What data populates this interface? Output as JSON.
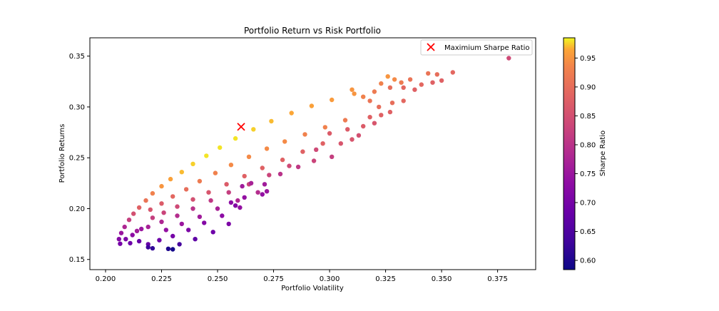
{
  "chart_data": {
    "type": "scatter",
    "title": "Portfolio Return vs Risk Portfolio",
    "xlabel": "Portfolio Volatility",
    "ylabel": "Portfolio Returns",
    "xlim": [
      0.193,
      0.392
    ],
    "ylim": [
      0.14,
      0.368
    ],
    "xticks": [
      {
        "value": 0.2,
        "label": "0.200"
      },
      {
        "value": 0.225,
        "label": "0.225"
      },
      {
        "value": 0.25,
        "label": "0.250"
      },
      {
        "value": 0.275,
        "label": "0.275"
      },
      {
        "value": 0.3,
        "label": "0.300"
      },
      {
        "value": 0.325,
        "label": "0.325"
      },
      {
        "value": 0.35,
        "label": "0.350"
      },
      {
        "value": 0.375,
        "label": "0.375"
      }
    ],
    "yticks": [
      {
        "value": 0.15,
        "label": "0.15"
      },
      {
        "value": 0.2,
        "label": "0.20"
      },
      {
        "value": 0.25,
        "label": "0.25"
      },
      {
        "value": 0.3,
        "label": "0.30"
      },
      {
        "value": 0.35,
        "label": "0.35"
      }
    ],
    "grid": false,
    "legend": {
      "position": "top-right",
      "entries": [
        {
          "label": "Maximium Sharpe Ratio",
          "marker": "x",
          "color": "#ff0000"
        }
      ]
    },
    "colorbar": {
      "label": "Sharpe Ratio",
      "colormap": "plasma",
      "range": [
        0.584,
        0.985
      ],
      "ticks": [
        {
          "value": 0.6,
          "label": "0.60"
        },
        {
          "value": 0.65,
          "label": "0.65"
        },
        {
          "value": 0.7,
          "label": "0.70"
        },
        {
          "value": 0.75,
          "label": "0.75"
        },
        {
          "value": 0.8,
          "label": "0.80"
        },
        {
          "value": 0.85,
          "label": "0.85"
        },
        {
          "value": 0.9,
          "label": "0.90"
        },
        {
          "value": 0.95,
          "label": "0.95"
        }
      ]
    },
    "max_sharpe_point": {
      "x": 0.2605,
      "y": 0.2805
    },
    "series": [
      {
        "values_format": "[volatility, return, sharpe_ratio]",
        "points": [
          [
            0.2065,
            0.1655,
            0.7
          ],
          [
            0.206,
            0.17,
            0.72
          ],
          [
            0.207,
            0.176,
            0.75
          ],
          [
            0.2085,
            0.182,
            0.78
          ],
          [
            0.2105,
            0.189,
            0.82
          ],
          [
            0.2125,
            0.195,
            0.85
          ],
          [
            0.215,
            0.201,
            0.88
          ],
          [
            0.218,
            0.208,
            0.91
          ],
          [
            0.221,
            0.215,
            0.93
          ],
          [
            0.225,
            0.222,
            0.95
          ],
          [
            0.229,
            0.229,
            0.96
          ],
          [
            0.234,
            0.236,
            0.97
          ],
          [
            0.239,
            0.244,
            0.975
          ],
          [
            0.245,
            0.252,
            0.98
          ],
          [
            0.251,
            0.26,
            0.98
          ],
          [
            0.258,
            0.269,
            0.98
          ],
          [
            0.266,
            0.278,
            0.975
          ],
          [
            0.274,
            0.286,
            0.97
          ],
          [
            0.283,
            0.294,
            0.965
          ],
          [
            0.292,
            0.301,
            0.96
          ],
          [
            0.301,
            0.307,
            0.955
          ],
          [
            0.311,
            0.313,
            0.95
          ],
          [
            0.22,
            0.199,
            0.86
          ],
          [
            0.225,
            0.205,
            0.87
          ],
          [
            0.23,
            0.212,
            0.89
          ],
          [
            0.236,
            0.219,
            0.9
          ],
          [
            0.242,
            0.227,
            0.92
          ],
          [
            0.249,
            0.235,
            0.93
          ],
          [
            0.256,
            0.243,
            0.94
          ],
          [
            0.264,
            0.251,
            0.94
          ],
          [
            0.272,
            0.259,
            0.94
          ],
          [
            0.28,
            0.266,
            0.94
          ],
          [
            0.289,
            0.273,
            0.93
          ],
          [
            0.298,
            0.28,
            0.93
          ],
          [
            0.307,
            0.287,
            0.92
          ],
          [
            0.221,
            0.191,
            0.82
          ],
          [
            0.226,
            0.196,
            0.83
          ],
          [
            0.232,
            0.202,
            0.84
          ],
          [
            0.239,
            0.209,
            0.85
          ],
          [
            0.246,
            0.216,
            0.86
          ],
          [
            0.254,
            0.224,
            0.87
          ],
          [
            0.262,
            0.232,
            0.88
          ],
          [
            0.27,
            0.24,
            0.88
          ],
          [
            0.279,
            0.248,
            0.88
          ],
          [
            0.288,
            0.256,
            0.88
          ],
          [
            0.297,
            0.264,
            0.88
          ],
          [
            0.214,
            0.178,
            0.76
          ],
          [
            0.219,
            0.182,
            0.77
          ],
          [
            0.225,
            0.187,
            0.78
          ],
          [
            0.232,
            0.193,
            0.79
          ],
          [
            0.239,
            0.2,
            0.8
          ],
          [
            0.247,
            0.208,
            0.81
          ],
          [
            0.255,
            0.216,
            0.82
          ],
          [
            0.264,
            0.224,
            0.83
          ],
          [
            0.273,
            0.233,
            0.83
          ],
          [
            0.282,
            0.242,
            0.84
          ],
          [
            0.227,
            0.179,
            0.74
          ],
          [
            0.234,
            0.185,
            0.75
          ],
          [
            0.242,
            0.192,
            0.76
          ],
          [
            0.25,
            0.2,
            0.77
          ],
          [
            0.259,
            0.208,
            0.78
          ],
          [
            0.268,
            0.216,
            0.79
          ],
          [
            0.219,
            0.165,
            0.68
          ],
          [
            0.224,
            0.169,
            0.69
          ],
          [
            0.23,
            0.173,
            0.7
          ],
          [
            0.237,
            0.179,
            0.71
          ],
          [
            0.244,
            0.186,
            0.72
          ],
          [
            0.252,
            0.193,
            0.73
          ],
          [
            0.26,
            0.201,
            0.74
          ],
          [
            0.209,
            0.17,
            0.71
          ],
          [
            0.212,
            0.174,
            0.73
          ],
          [
            0.216,
            0.18,
            0.75
          ],
          [
            0.211,
            0.166,
            0.69
          ],
          [
            0.215,
            0.168,
            0.68
          ],
          [
            0.221,
            0.161,
            0.62
          ],
          [
            0.219,
            0.162,
            0.63
          ],
          [
            0.228,
            0.1605,
            0.6
          ],
          [
            0.23,
            0.16,
            0.59
          ],
          [
            0.233,
            0.165,
            0.64
          ],
          [
            0.24,
            0.17,
            0.67
          ],
          [
            0.248,
            0.177,
            0.69
          ],
          [
            0.255,
            0.185,
            0.71
          ],
          [
            0.258,
            0.203,
            0.72
          ],
          [
            0.262,
            0.211,
            0.74
          ],
          [
            0.27,
            0.214,
            0.74
          ],
          [
            0.272,
            0.217,
            0.75
          ],
          [
            0.271,
            0.224,
            0.76
          ],
          [
            0.265,
            0.225,
            0.77
          ],
          [
            0.261,
            0.222,
            0.76
          ],
          [
            0.256,
            0.206,
            0.73
          ],
          [
            0.278,
            0.234,
            0.8
          ],
          [
            0.286,
            0.241,
            0.81
          ],
          [
            0.293,
            0.247,
            0.83
          ],
          [
            0.301,
            0.251,
            0.82
          ],
          [
            0.294,
            0.258,
            0.84
          ],
          [
            0.305,
            0.264,
            0.86
          ],
          [
            0.31,
            0.268,
            0.86
          ],
          [
            0.313,
            0.272,
            0.85
          ],
          [
            0.3,
            0.274,
            0.87
          ],
          [
            0.308,
            0.278,
            0.87
          ],
          [
            0.315,
            0.281,
            0.87
          ],
          [
            0.32,
            0.284,
            0.86
          ],
          [
            0.318,
            0.29,
            0.88
          ],
          [
            0.323,
            0.292,
            0.88
          ],
          [
            0.327,
            0.295,
            0.88
          ],
          [
            0.322,
            0.3,
            0.9
          ],
          [
            0.328,
            0.304,
            0.9
          ],
          [
            0.333,
            0.306,
            0.89
          ],
          [
            0.318,
            0.306,
            0.91
          ],
          [
            0.315,
            0.31,
            0.93
          ],
          [
            0.32,
            0.315,
            0.92
          ],
          [
            0.327,
            0.319,
            0.9
          ],
          [
            0.333,
            0.319,
            0.89
          ],
          [
            0.338,
            0.317,
            0.88
          ],
          [
            0.341,
            0.322,
            0.89
          ],
          [
            0.346,
            0.324,
            0.88
          ],
          [
            0.35,
            0.326,
            0.88
          ],
          [
            0.344,
            0.333,
            0.91
          ],
          [
            0.348,
            0.332,
            0.9
          ],
          [
            0.355,
            0.334,
            0.89
          ],
          [
            0.323,
            0.323,
            0.93
          ],
          [
            0.329,
            0.327,
            0.94
          ],
          [
            0.326,
            0.33,
            0.95
          ],
          [
            0.332,
            0.324,
            0.92
          ],
          [
            0.336,
            0.327,
            0.91
          ],
          [
            0.31,
            0.317,
            0.95
          ],
          [
            0.38,
            0.348,
            0.84
          ]
        ]
      }
    ]
  }
}
